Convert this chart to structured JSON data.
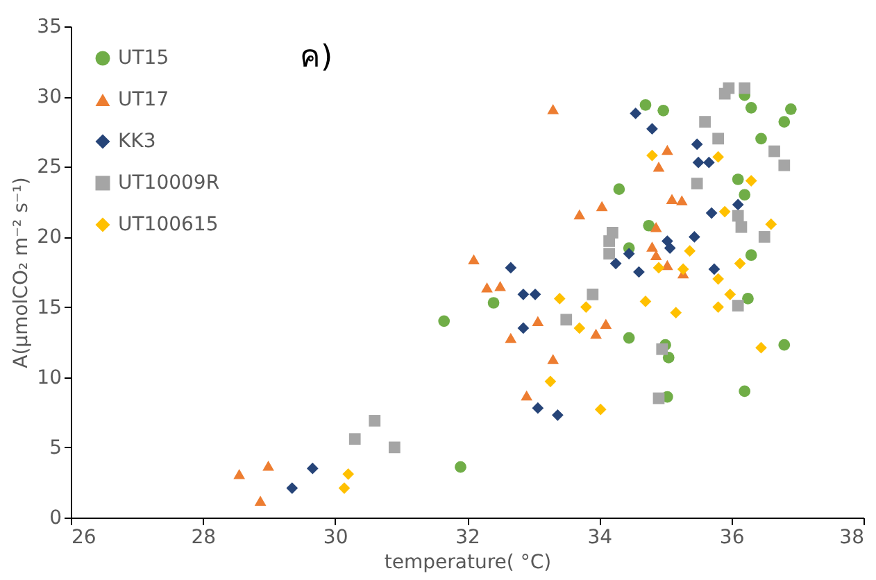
{
  "chart_data": {
    "type": "scatter",
    "xlabel": "temperature( °C)",
    "ylabel": "A(μmolCO₂ m⁻² s⁻¹)",
    "annotations": [
      "ค)"
    ],
    "xlim": [
      26,
      38
    ],
    "xticks": [
      26,
      28,
      30,
      32,
      34,
      36,
      38
    ],
    "ylim": [
      0,
      35
    ],
    "yticks": [
      0,
      5,
      10,
      15,
      20,
      25,
      30,
      35
    ],
    "grid": false,
    "legend": "top left",
    "series": [
      {
        "name": "UT15",
        "color": "#70ad47",
        "marker": "circle",
        "x": [
          31.65,
          31.9,
          32.4,
          34.3,
          34.45,
          34.7,
          34.97,
          34.75,
          35.0,
          35.05,
          35.03,
          36.2,
          36.3,
          36.9,
          36.8,
          36.45,
          36.1,
          36.2,
          34.45,
          36.25,
          36.8,
          36.2,
          36.3
        ],
        "values": [
          14.0,
          3.6,
          15.3,
          23.4,
          12.8,
          29.4,
          29.0,
          20.8,
          12.3,
          11.4,
          8.6,
          30.1,
          29.2,
          29.1,
          28.2,
          27.0,
          24.1,
          23.0,
          19.2,
          15.6,
          12.3,
          9.0,
          18.7
        ]
      },
      {
        "name": "UT17",
        "color": "#ed7d31",
        "marker": "triangle",
        "x": [
          28.55,
          28.87,
          28.99,
          33.3,
          34.04,
          33.7,
          32.1,
          32.3,
          32.5,
          33.07,
          32.66,
          34.1,
          33.95,
          33.3,
          32.9,
          35.03,
          34.9,
          35.1,
          35.25,
          34.86,
          34.8,
          34.86,
          35.03,
          35.27
        ],
        "values": [
          3.1,
          1.2,
          3.7,
          29.1,
          22.2,
          21.6,
          18.4,
          16.4,
          16.5,
          14.0,
          12.8,
          13.8,
          13.1,
          11.3,
          8.7,
          26.2,
          25.0,
          22.7,
          22.6,
          20.7,
          19.3,
          18.7,
          18.0,
          17.4
        ]
      },
      {
        "name": "KK3",
        "color": "#264478",
        "marker": "diamond",
        "x": [
          29.35,
          29.66,
          34.55,
          32.66,
          32.85,
          33.03,
          32.85,
          34.25,
          34.45,
          34.6,
          33.07,
          33.37,
          34.8,
          35.48,
          35.5,
          35.66,
          35.7,
          36.1,
          35.44,
          35.03,
          35.07,
          35.74
        ],
        "values": [
          2.1,
          3.5,
          28.8,
          17.8,
          15.9,
          15.9,
          13.5,
          18.1,
          18.8,
          17.5,
          7.8,
          7.3,
          27.7,
          26.6,
          25.3,
          25.3,
          21.7,
          22.3,
          20.0,
          19.7,
          19.2,
          17.7
        ]
      },
      {
        "name": "UT10009R",
        "color": "#a5a5a5",
        "marker": "square",
        "x": [
          30.3,
          30.6,
          30.9,
          33.9,
          33.5,
          34.2,
          34.15,
          34.15,
          35.96,
          36.2,
          35.9,
          35.6,
          35.8,
          36.65,
          36.8,
          35.48,
          36.1,
          36.15,
          36.5,
          36.1,
          34.95,
          34.9
        ],
        "values": [
          5.6,
          6.9,
          5.0,
          15.9,
          14.1,
          20.3,
          19.7,
          18.8,
          30.6,
          30.6,
          30.2,
          28.2,
          27.0,
          26.1,
          25.1,
          23.8,
          21.5,
          20.7,
          20.0,
          15.1,
          12.0,
          8.5
        ]
      },
      {
        "name": "UT100615",
        "color": "#ffc000",
        "marker": "diamond",
        "x": [
          30.2,
          30.14,
          33.4,
          33.8,
          33.7,
          33.26,
          34.02,
          34.8,
          35.8,
          36.3,
          35.9,
          36.6,
          35.37,
          34.9,
          35.27,
          36.13,
          35.8,
          35.98,
          34.7,
          35.16,
          35.8,
          36.45
        ],
        "values": [
          3.1,
          2.1,
          15.6,
          15.0,
          13.5,
          9.7,
          7.7,
          25.8,
          25.7,
          24.0,
          21.8,
          20.9,
          19.0,
          17.8,
          17.7,
          18.1,
          17.0,
          15.9,
          15.4,
          14.6,
          15.0,
          12.1
        ]
      }
    ]
  }
}
